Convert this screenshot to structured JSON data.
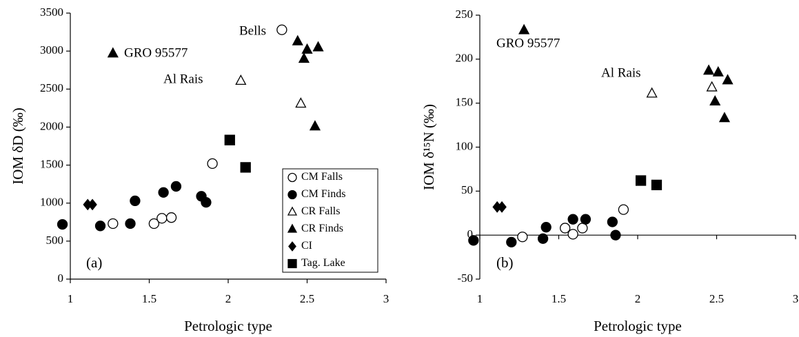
{
  "chart_data": [
    {
      "type": "scatter",
      "xlabel": "Petrologic type",
      "ylabel": "IOM δD (‰)",
      "panel_label": "(a)",
      "annotations": [
        "GRO 95577",
        "Al Rais",
        "Bells"
      ],
      "xlim": [
        1,
        3
      ],
      "xticks": [
        1,
        1.5,
        2,
        2.5,
        3
      ],
      "ylim": [
        0,
        3500
      ],
      "yticks": [
        0,
        500,
        1000,
        1500,
        2000,
        2500,
        3000,
        3500
      ],
      "legend": "lower right",
      "series": [
        {
          "name": "CM Falls",
          "color": "#000000",
          "marker": "circle",
          "filled": false,
          "x": [
            1.27,
            1.53,
            1.58,
            1.64,
            1.9,
            2.34
          ],
          "values": [
            730,
            730,
            800,
            810,
            1520,
            3280
          ]
        },
        {
          "name": "CM Finds",
          "color": "#000000",
          "marker": "circle",
          "filled": true,
          "x": [
            0.95,
            1.19,
            1.38,
            1.41,
            1.59,
            1.67,
            1.83,
            1.86
          ],
          "values": [
            720,
            700,
            730,
            1030,
            1140,
            1220,
            1090,
            1010
          ]
        },
        {
          "name": "CR Falls",
          "color": "#000000",
          "marker": "triangle",
          "filled": false,
          "x": [
            2.08,
            2.46
          ],
          "values": [
            2610,
            2310
          ]
        },
        {
          "name": "CR Finds",
          "color": "#000000",
          "marker": "triangle",
          "filled": true,
          "x": [
            1.27,
            2.44,
            2.5,
            2.48,
            2.57,
            2.55
          ],
          "values": [
            2970,
            3130,
            3020,
            2900,
            3050,
            2010
          ]
        },
        {
          "name": "CI",
          "color": "#000000",
          "marker": "diamond",
          "filled": true,
          "x": [
            1.11,
            1.14
          ],
          "values": [
            980,
            980
          ]
        },
        {
          "name": "Tag. Lake",
          "color": "#000000",
          "marker": "square",
          "filled": true,
          "x": [
            2.01,
            2.11
          ],
          "values": [
            1830,
            1470
          ]
        }
      ]
    },
    {
      "type": "scatter",
      "xlabel": "Petrologic type",
      "ylabel": "IOM δ¹⁵N (‰)",
      "panel_label": "(b)",
      "annotations": [
        "GRO 95577",
        "Al Rais"
      ],
      "xlim": [
        1,
        3
      ],
      "xticks": [
        1,
        1.5,
        2,
        2.5,
        3
      ],
      "ylim": [
        -50,
        250
      ],
      "yticks": [
        -50,
        0,
        50,
        100,
        150,
        200,
        250
      ],
      "series": [
        {
          "color": "#000000",
          "marker": "circle",
          "filled": false,
          "x": [
            1.27,
            1.54,
            1.59,
            1.65,
            1.91
          ],
          "values": [
            -2,
            8,
            1,
            8,
            29
          ]
        },
        {
          "color": "#000000",
          "marker": "circle",
          "filled": true,
          "x": [
            0.96,
            1.2,
            1.4,
            1.42,
            1.59,
            1.67,
            1.84,
            1.86
          ],
          "values": [
            -6,
            -8,
            -4,
            9,
            18,
            18,
            15,
            0
          ]
        },
        {
          "color": "#000000",
          "marker": "triangle",
          "filled": false,
          "x": [
            2.09,
            2.47
          ],
          "values": [
            161,
            168
          ]
        },
        {
          "color": "#000000",
          "marker": "triangle",
          "filled": true,
          "x": [
            1.28,
            2.45,
            2.51,
            2.49,
            2.57,
            2.55
          ],
          "values": [
            233,
            187,
            185,
            152,
            176,
            133
          ]
        },
        {
          "color": "#000000",
          "marker": "diamond",
          "filled": true,
          "x": [
            1.11,
            1.14
          ],
          "values": [
            32,
            32
          ]
        },
        {
          "color": "#000000",
          "marker": "square",
          "filled": true,
          "x": [
            2.02,
            2.12
          ],
          "values": [
            62,
            57
          ]
        }
      ]
    }
  ]
}
